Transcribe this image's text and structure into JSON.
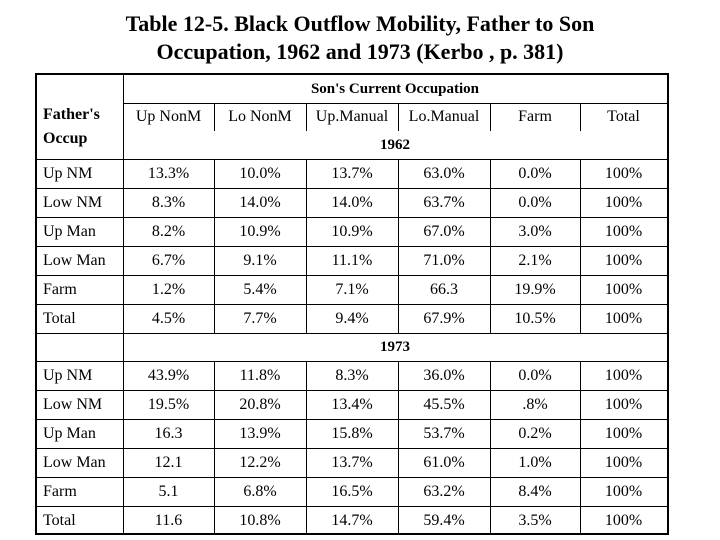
{
  "title_line1": "Table 12-5. Black Outflow Mobility, Father to Son",
  "title_line2": "Occupation, 1962 and 1973 (Kerbo , p. 381)",
  "sons_header": "Son's Current Occupation",
  "father_line1": "Father's",
  "father_line2": "Occup",
  "columns": [
    "Up NonM",
    "Lo NonM",
    "Up.Manual",
    "Lo.Manual",
    "Farm",
    "Total"
  ],
  "sections": [
    {
      "year": "1962",
      "rows": [
        {
          "label": "Up NM",
          "values": [
            "13.3%",
            "10.0%",
            "13.7%",
            "63.0%",
            "0.0%",
            "100%"
          ]
        },
        {
          "label": "Low NM",
          "values": [
            "8.3%",
            "14.0%",
            "14.0%",
            "63.7%",
            "0.0%",
            "100%"
          ]
        },
        {
          "label": "Up Man",
          "values": [
            "8.2%",
            "10.9%",
            "10.9%",
            "67.0%",
            "3.0%",
            "100%"
          ]
        },
        {
          "label": "Low Man",
          "values": [
            "6.7%",
            "9.1%",
            "11.1%",
            "71.0%",
            "2.1%",
            "100%"
          ]
        },
        {
          "label": "Farm",
          "values": [
            "1.2%",
            "5.4%",
            "7.1%",
            "66.3",
            "19.9%",
            "100%"
          ]
        },
        {
          "label": "Total",
          "values": [
            "4.5%",
            "7.7%",
            "9.4%",
            "67.9%",
            "10.5%",
            "100%"
          ]
        }
      ]
    },
    {
      "year": "1973",
      "rows": [
        {
          "label": "Up NM",
          "values": [
            "43.9%",
            "11.8%",
            "8.3%",
            "36.0%",
            "0.0%",
            "100%"
          ]
        },
        {
          "label": "Low NM",
          "values": [
            "19.5%",
            "20.8%",
            "13.4%",
            "45.5%",
            ".8%",
            "100%"
          ]
        },
        {
          "label": "Up Man",
          "values": [
            "16.3",
            "13.9%",
            "15.8%",
            "53.7%",
            "0.2%",
            "100%"
          ]
        },
        {
          "label": "Low Man",
          "values": [
            "12.1",
            "12.2%",
            "13.7%",
            "61.0%",
            "1.0%",
            "100%"
          ]
        },
        {
          "label": "Farm",
          "values": [
            "5.1",
            "6.8%",
            "16.5%",
            "63.2%",
            "8.4%",
            "100%"
          ]
        },
        {
          "label": "Total",
          "values": [
            "11.6",
            "10.8%",
            "14.7%",
            "59.4%",
            "3.5%",
            "100%"
          ]
        }
      ]
    }
  ]
}
